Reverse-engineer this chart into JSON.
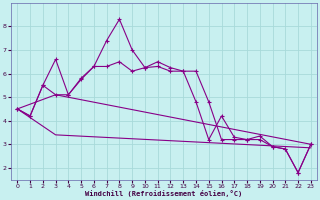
{
  "xlabel": "Windchill (Refroidissement éolien,°C)",
  "bg_color": "#c8f0f0",
  "grid_color": "#a8dada",
  "line_color": "#880088",
  "spine_color": "#6666aa",
  "tick_color": "#440044",
  "xlim": [
    -0.5,
    23.5
  ],
  "ylim": [
    1.5,
    9.0
  ],
  "xticks": [
    0,
    1,
    2,
    3,
    4,
    5,
    6,
    7,
    8,
    9,
    10,
    11,
    12,
    13,
    14,
    15,
    16,
    17,
    18,
    19,
    20,
    21,
    22,
    23
  ],
  "yticks": [
    2,
    3,
    4,
    5,
    6,
    7,
    8
  ],
  "series1_x": [
    0,
    1,
    2,
    3,
    4,
    5,
    6,
    7,
    8,
    9,
    10,
    11,
    12,
    13,
    14,
    15,
    16,
    17,
    18,
    19,
    20,
    21,
    22,
    23
  ],
  "series1_y": [
    4.5,
    4.2,
    5.5,
    6.6,
    5.1,
    5.8,
    6.3,
    7.4,
    8.3,
    7.0,
    6.25,
    6.5,
    6.25,
    6.1,
    4.8,
    3.2,
    4.2,
    3.3,
    3.2,
    3.35,
    2.9,
    2.8,
    1.8,
    3.0
  ],
  "series2_x": [
    0,
    1,
    2,
    3,
    4,
    5,
    6,
    7,
    8,
    9,
    10,
    11,
    12,
    13,
    14,
    15,
    16,
    17,
    18,
    19,
    20,
    21,
    22,
    23
  ],
  "series2_y": [
    4.5,
    4.2,
    5.5,
    5.1,
    5.1,
    5.75,
    6.3,
    6.3,
    6.5,
    6.1,
    6.25,
    6.3,
    6.1,
    6.1,
    6.1,
    4.8,
    3.2,
    3.2,
    3.2,
    3.2,
    2.9,
    2.8,
    1.8,
    3.0
  ],
  "series3_x": [
    0,
    3,
    23
  ],
  "series3_y": [
    4.5,
    3.4,
    2.85
  ],
  "series4_x": [
    0,
    3,
    23
  ],
  "series4_y": [
    4.5,
    5.1,
    3.0
  ],
  "marker_size": 2.5,
  "linewidth": 0.8
}
